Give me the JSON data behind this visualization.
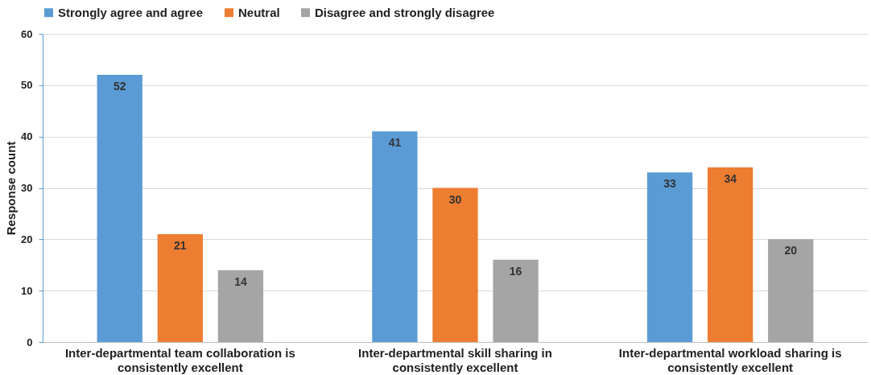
{
  "chart_data": {
    "type": "bar",
    "ylabel": "Response count",
    "categories": [
      "Inter-departmental team collaboration is consistently excellent",
      "Inter-departmental skill sharing in consistently excellent",
      "Inter-departmental workload sharing is consistently excellent"
    ],
    "series": [
      {
        "name": "Strongly agree and agree",
        "color": "#5b9bd5",
        "values": [
          52,
          41,
          33
        ]
      },
      {
        "name": "Neutral",
        "color": "#ed7d31",
        "values": [
          21,
          30,
          34
        ]
      },
      {
        "name": "Disagree and strongly disagree",
        "color": "#a5a5a5",
        "values": [
          14,
          16,
          20
        ]
      }
    ],
    "ylim": [
      0,
      60
    ],
    "yticks": [
      0,
      10,
      20,
      30,
      40,
      50,
      60
    ],
    "grid": "y",
    "legend": "top",
    "data_labels": true
  }
}
